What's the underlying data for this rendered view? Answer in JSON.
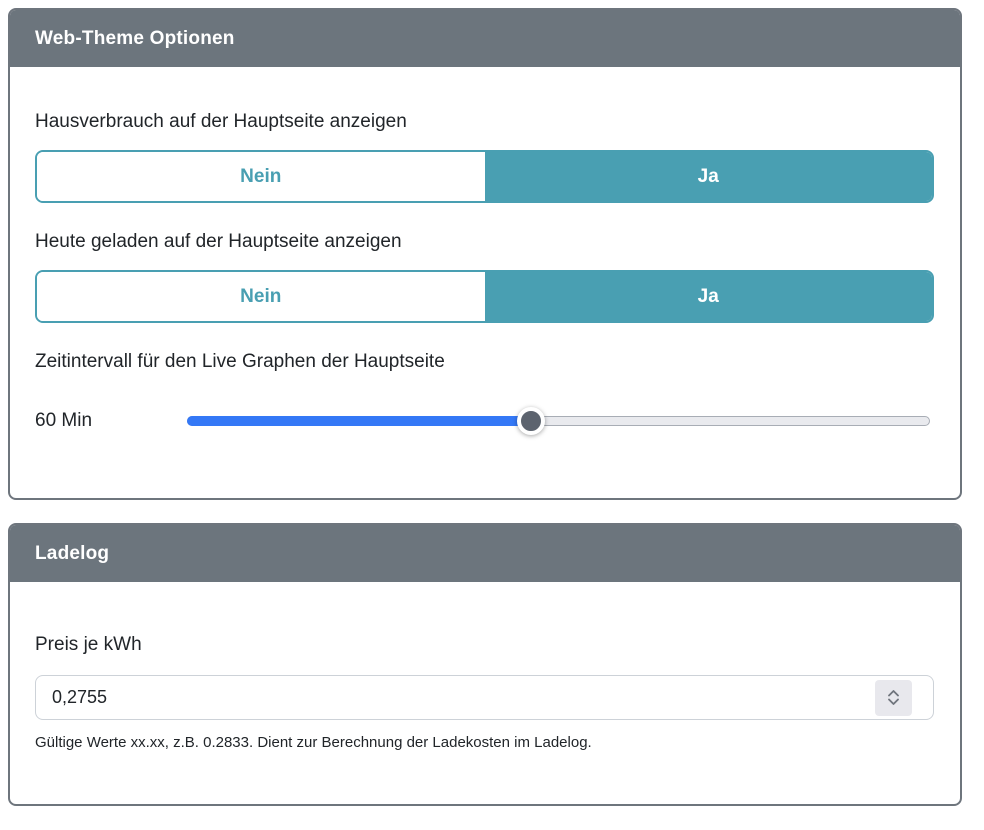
{
  "colors": {
    "accent": "#499fb2",
    "header_bg": "#6c757d",
    "slider_blue": "#3478f6",
    "thumb_gray": "#5c636e",
    "card_border": "#6e757d"
  },
  "theme_card": {
    "title": "Web-Theme Optionen",
    "hausverbrauch": {
      "label": "Hausverbrauch auf der Hauptseite anzeigen",
      "options": [
        "Nein",
        "Ja"
      ],
      "selected": "Ja"
    },
    "heute_geladen": {
      "label": "Heute geladen auf der Hauptseite anzeigen",
      "options": [
        "Nein",
        "Ja"
      ],
      "selected": "Ja"
    },
    "zeitintervall": {
      "label": "Zeitintervall für den Live Graphen der Hauptseite",
      "value": "60 Min",
      "percent": 46
    }
  },
  "ladelog_card": {
    "title": "Ladelog",
    "preis": {
      "label": "Preis je kWh",
      "value": "0,2755",
      "help": "Gültige Werte xx.xx, z.B. 0.2833. Dient zur Berechnung der Ladekosten im Ladelog."
    }
  }
}
